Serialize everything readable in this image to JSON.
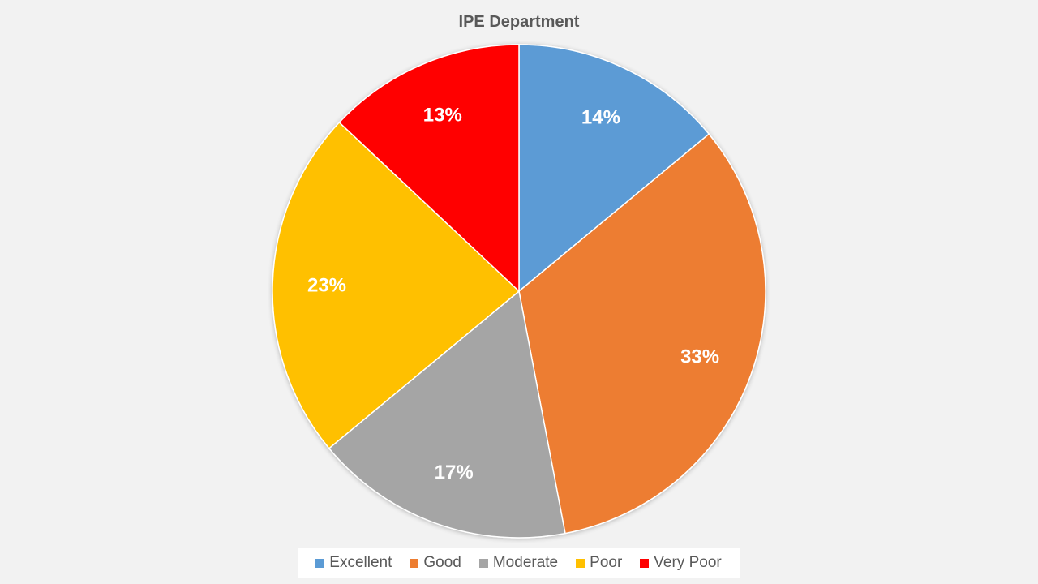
{
  "chart_data": {
    "type": "pie",
    "title": "IPE Department",
    "categories": [
      "Excellent",
      "Good",
      "Moderate",
      "Poor",
      "Very Poor"
    ],
    "values": [
      14,
      33,
      17,
      23,
      13
    ],
    "labels": [
      "14%",
      "33%",
      "17%",
      "23%",
      "13%"
    ],
    "colors": [
      "#5b9bd5",
      "#ed7d31",
      "#a5a5a5",
      "#ffc000",
      "#ff0000"
    ],
    "legend_position": "bottom"
  }
}
